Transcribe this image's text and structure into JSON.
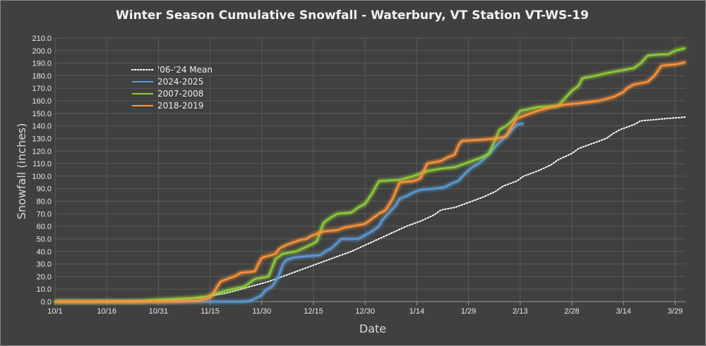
{
  "chart_data": {
    "type": "line",
    "title": "Winter Season Cumulative Snowfall - Waterbury, VT Station VT-WS-19",
    "xlabel": "Date",
    "ylabel": "Snowfall (inches)",
    "xlim": [
      0,
      183
    ],
    "ylim": [
      0,
      210
    ],
    "y_ticks": [
      "0.0",
      "10.0",
      "20.0",
      "30.0",
      "40.0",
      "50.0",
      "60.0",
      "70.0",
      "80.0",
      "90.0",
      "100.0",
      "110.0",
      "120.0",
      "130.0",
      "140.0",
      "150.0",
      "160.0",
      "170.0",
      "180.0",
      "190.0",
      "200.0",
      "210.0"
    ],
    "x_ticks": [
      {
        "day": 0,
        "label": "10/1"
      },
      {
        "day": 15,
        "label": "10/16"
      },
      {
        "day": 30,
        "label": "10/31"
      },
      {
        "day": 45,
        "label": "11/15"
      },
      {
        "day": 60,
        "label": "11/30"
      },
      {
        "day": 75,
        "label": "12/15"
      },
      {
        "day": 90,
        "label": "12/30"
      },
      {
        "day": 105,
        "label": "1/14"
      },
      {
        "day": 120,
        "label": "1/29"
      },
      {
        "day": 135,
        "label": "2/13"
      },
      {
        "day": 150,
        "label": "2/28"
      },
      {
        "day": 165,
        "label": "3/14"
      },
      {
        "day": 180,
        "label": "3/29"
      }
    ],
    "legend_position": "upper-left",
    "grid": true,
    "series": [
      {
        "name": "'06-'24 Mean",
        "color": "#ffffff",
        "style": "dotted",
        "points": [
          [
            0,
            0
          ],
          [
            20,
            0.5
          ],
          [
            30,
            1
          ],
          [
            38,
            2
          ],
          [
            42,
            3
          ],
          [
            46,
            5
          ],
          [
            50,
            7
          ],
          [
            54,
            10
          ],
          [
            58,
            13
          ],
          [
            62,
            16
          ],
          [
            66,
            20
          ],
          [
            70,
            24
          ],
          [
            74,
            28
          ],
          [
            78,
            32
          ],
          [
            82,
            36
          ],
          [
            86,
            40
          ],
          [
            90,
            45
          ],
          [
            94,
            50
          ],
          [
            98,
            55
          ],
          [
            102,
            60
          ],
          [
            106,
            64
          ],
          [
            110,
            69
          ],
          [
            112,
            73
          ],
          [
            116,
            75
          ],
          [
            120,
            79
          ],
          [
            124,
            83
          ],
          [
            128,
            88
          ],
          [
            130,
            92
          ],
          [
            134,
            96
          ],
          [
            136,
            100
          ],
          [
            140,
            104
          ],
          [
            144,
            109
          ],
          [
            146,
            113
          ],
          [
            150,
            118
          ],
          [
            152,
            122
          ],
          [
            156,
            126
          ],
          [
            160,
            130
          ],
          [
            162,
            134
          ],
          [
            164,
            137
          ],
          [
            168,
            141
          ],
          [
            170,
            144
          ],
          [
            174,
            145
          ],
          [
            178,
            146
          ],
          [
            183,
            147
          ]
        ]
      },
      {
        "name": "2024-2025",
        "color": "#5b9bd5",
        "style": "solid",
        "points": [
          [
            0,
            0
          ],
          [
            55,
            0
          ],
          [
            57,
            1
          ],
          [
            60,
            5
          ],
          [
            61,
            9
          ],
          [
            63,
            12
          ],
          [
            64,
            16
          ],
          [
            65,
            21
          ],
          [
            66,
            29
          ],
          [
            67,
            33
          ],
          [
            69,
            35
          ],
          [
            72,
            36
          ],
          [
            77,
            37
          ],
          [
            79,
            41
          ],
          [
            80,
            42
          ],
          [
            82,
            47
          ],
          [
            83,
            50
          ],
          [
            88,
            50
          ],
          [
            90,
            53
          ],
          [
            92,
            56
          ],
          [
            94,
            60
          ],
          [
            95,
            65
          ],
          [
            97,
            71
          ],
          [
            99,
            77
          ],
          [
            100,
            82
          ],
          [
            102,
            84
          ],
          [
            104,
            87
          ],
          [
            106,
            89
          ],
          [
            110,
            90
          ],
          [
            113,
            91
          ],
          [
            115,
            94
          ],
          [
            117,
            96
          ],
          [
            119,
            102
          ],
          [
            121,
            107
          ],
          [
            123,
            110
          ],
          [
            125,
            115
          ],
          [
            127,
            121
          ],
          [
            129,
            127
          ],
          [
            131,
            132
          ],
          [
            133,
            138
          ],
          [
            134,
            141
          ],
          [
            136,
            142
          ]
        ]
      },
      {
        "name": "2007-2008",
        "color": "#8fce3a",
        "style": "solid",
        "points": [
          [
            0,
            0
          ],
          [
            25,
            0
          ],
          [
            27,
            1
          ],
          [
            34,
            2
          ],
          [
            40,
            3
          ],
          [
            44,
            4
          ],
          [
            46,
            6
          ],
          [
            50,
            9
          ],
          [
            55,
            12
          ],
          [
            58,
            18
          ],
          [
            62,
            20
          ],
          [
            64,
            34
          ],
          [
            66,
            38
          ],
          [
            70,
            40
          ],
          [
            74,
            45
          ],
          [
            76,
            48
          ],
          [
            77,
            56
          ],
          [
            78,
            63
          ],
          [
            80,
            67
          ],
          [
            82,
            70
          ],
          [
            86,
            71
          ],
          [
            88,
            75
          ],
          [
            90,
            78
          ],
          [
            92,
            86
          ],
          [
            94,
            96
          ],
          [
            100,
            97
          ],
          [
            104,
            100
          ],
          [
            108,
            104
          ],
          [
            112,
            106
          ],
          [
            116,
            107
          ],
          [
            120,
            111
          ],
          [
            124,
            115
          ],
          [
            126,
            118
          ],
          [
            129,
            137
          ],
          [
            131,
            140
          ],
          [
            133,
            145
          ],
          [
            135,
            152
          ],
          [
            137,
            153
          ],
          [
            140,
            155
          ],
          [
            146,
            156
          ],
          [
            148,
            162
          ],
          [
            150,
            168
          ],
          [
            152,
            172
          ],
          [
            153,
            178
          ],
          [
            157,
            180
          ],
          [
            160,
            182
          ],
          [
            162,
            183
          ],
          [
            166,
            185
          ],
          [
            168,
            186
          ],
          [
            170,
            190
          ],
          [
            172,
            196
          ],
          [
            176,
            197
          ],
          [
            178,
            197
          ],
          [
            180,
            200
          ],
          [
            183,
            202
          ]
        ]
      },
      {
        "name": "2018-2019",
        "color": "#ff9438",
        "style": "solid",
        "points": [
          [
            0,
            0
          ],
          [
            35,
            0
          ],
          [
            42,
            1
          ],
          [
            45,
            3
          ],
          [
            46,
            7
          ],
          [
            48,
            16
          ],
          [
            50,
            18
          ],
          [
            52,
            20
          ],
          [
            54,
            23
          ],
          [
            58,
            24
          ],
          [
            59,
            30
          ],
          [
            60,
            35
          ],
          [
            64,
            38
          ],
          [
            65,
            42
          ],
          [
            67,
            45
          ],
          [
            69,
            47
          ],
          [
            71,
            49
          ],
          [
            73,
            50
          ],
          [
            74,
            52
          ],
          [
            76,
            54
          ],
          [
            78,
            56
          ],
          [
            82,
            57
          ],
          [
            84,
            59
          ],
          [
            88,
            61
          ],
          [
            90,
            62
          ],
          [
            92,
            66
          ],
          [
            94,
            70
          ],
          [
            96,
            73
          ],
          [
            98,
            82
          ],
          [
            100,
            95
          ],
          [
            104,
            96
          ],
          [
            106,
            98
          ],
          [
            108,
            110
          ],
          [
            112,
            112
          ],
          [
            114,
            115
          ],
          [
            116,
            117
          ],
          [
            117,
            124
          ],
          [
            118,
            128
          ],
          [
            124,
            129
          ],
          [
            128,
            130
          ],
          [
            130,
            131
          ],
          [
            131,
            132
          ],
          [
            132,
            137
          ],
          [
            134,
            146
          ],
          [
            136,
            148
          ],
          [
            140,
            152
          ],
          [
            144,
            155
          ],
          [
            148,
            157
          ],
          [
            152,
            158
          ],
          [
            158,
            160
          ],
          [
            162,
            163
          ],
          [
            165,
            167
          ],
          [
            166,
            170
          ],
          [
            168,
            173
          ],
          [
            172,
            175
          ],
          [
            174,
            180
          ],
          [
            176,
            188
          ],
          [
            180,
            189
          ],
          [
            182,
            190
          ],
          [
            183,
            191
          ]
        ]
      }
    ]
  }
}
